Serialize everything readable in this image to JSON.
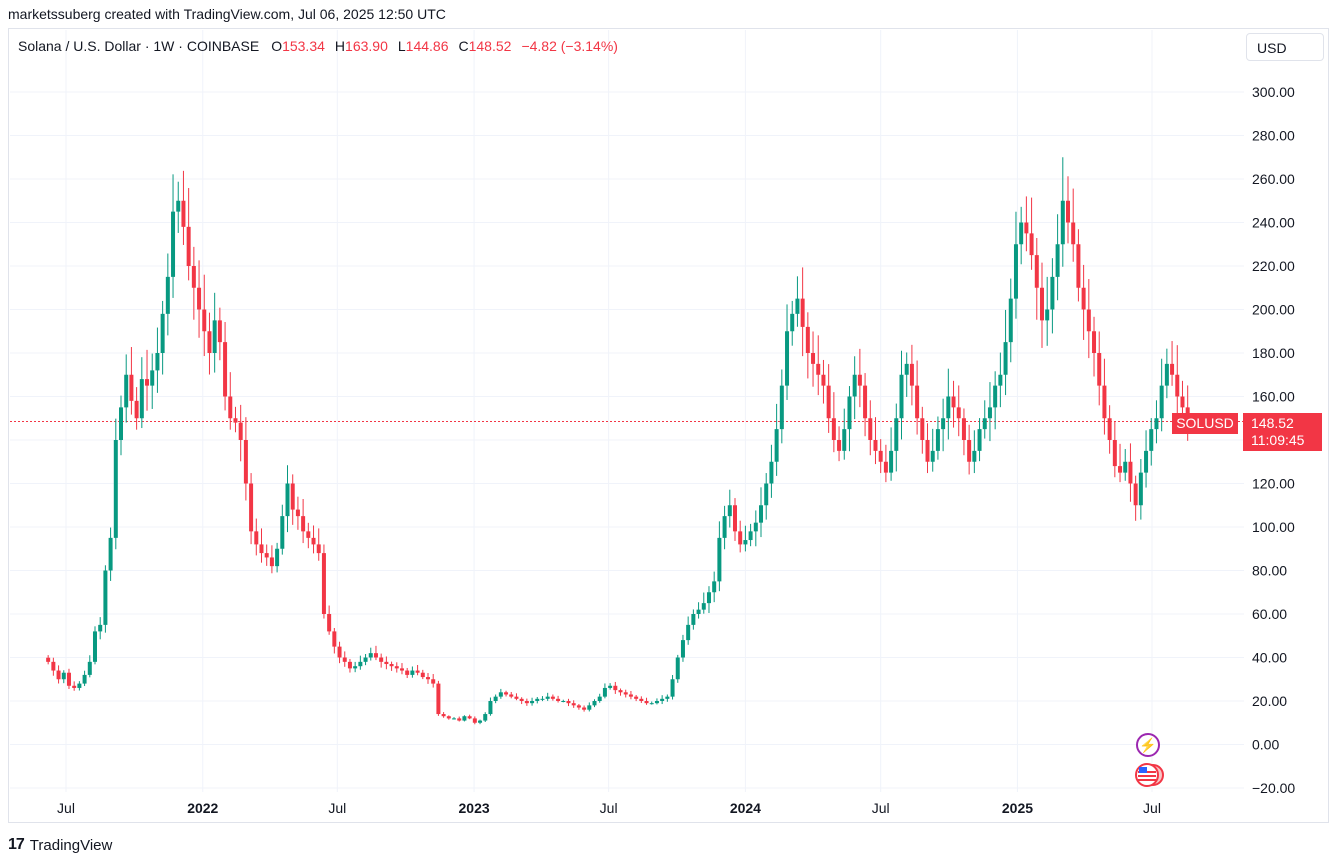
{
  "attribution": "marketssuberg created with TradingView.com, Jul 06, 2025 12:50 UTC",
  "legend": {
    "symbol": "Solana / U.S. Dollar · 1W · COINBASE",
    "o_key": "O",
    "o_val": "153.34",
    "h_key": "H",
    "h_val": "163.90",
    "l_key": "L",
    "l_val": "144.86",
    "c_key": "C",
    "c_val": "148.52",
    "change": "−4.82 (−3.14%)"
  },
  "currency_button": "USD",
  "price_tag": {
    "symbol": "SOLUSD",
    "price": "148.52",
    "countdown": "11:09:45"
  },
  "footer": {
    "mark": "17",
    "brand": "TradingView"
  },
  "colors": {
    "up": "#089981",
    "down": "#f23645",
    "grid": "#f0f3fa",
    "axis_text": "#131722"
  },
  "icons": {
    "event_bolt": "lightning-icon",
    "event_flag": "us-flag-icon"
  },
  "chart_data": {
    "type": "candlestick",
    "title": "Solana / U.S. Dollar",
    "interval": "1W",
    "exchange": "COINBASE",
    "ylim": [
      -20,
      300
    ],
    "y_ticks": [
      "300.00",
      "280.00",
      "260.00",
      "240.00",
      "220.00",
      "200.00",
      "180.00",
      "160.00",
      "140.00",
      "120.00",
      "100.00",
      "80.00",
      "60.00",
      "40.00",
      "20.00",
      "0.00",
      "−20.00"
    ],
    "x_ticks": [
      {
        "label": "Jul",
        "date": "2021-07-01",
        "bold": false
      },
      {
        "label": "2022",
        "date": "2022-01-01",
        "bold": true
      },
      {
        "label": "Jul",
        "date": "2022-07-01",
        "bold": false
      },
      {
        "label": "2023",
        "date": "2023-01-01",
        "bold": true
      },
      {
        "label": "Jul",
        "date": "2023-07-01",
        "bold": false
      },
      {
        "label": "2024",
        "date": "2024-01-01",
        "bold": true
      },
      {
        "label": "Jul",
        "date": "2024-07-01",
        "bold": false
      },
      {
        "label": "2025",
        "date": "2025-01-01",
        "bold": true
      },
      {
        "label": "Jul",
        "date": "2025-07-01",
        "bold": false
      }
    ],
    "grid": true,
    "last_price": 148.52,
    "closes": [
      38,
      34,
      30,
      33,
      27,
      26,
      28,
      32,
      38,
      52,
      55,
      80,
      95,
      140,
      155,
      170,
      158,
      150,
      168,
      165,
      172,
      180,
      198,
      215,
      245,
      250,
      238,
      220,
      210,
      200,
      190,
      180,
      195,
      185,
      160,
      150,
      148,
      140,
      120,
      98,
      92,
      88,
      86,
      82,
      90,
      105,
      120,
      108,
      105,
      98,
      95,
      92,
      88,
      60,
      52,
      45,
      40,
      38,
      35,
      36,
      38,
      40,
      42,
      40,
      38,
      37,
      36,
      35,
      34,
      32,
      34,
      33,
      31,
      30,
      28,
      14,
      13,
      12,
      12,
      11,
      13,
      12,
      10,
      11,
      14,
      20,
      22,
      24,
      23,
      22,
      21,
      20,
      19,
      20,
      21,
      21,
      22,
      21,
      20,
      20,
      19,
      18,
      17,
      16,
      18,
      20,
      22,
      26,
      27,
      25,
      24,
      23,
      22,
      21,
      20,
      19,
      19,
      20,
      21,
      22,
      30,
      40,
      48,
      55,
      60,
      62,
      65,
      70,
      75,
      95,
      105,
      110,
      98,
      92,
      94,
      98,
      102,
      110,
      120,
      130,
      145,
      165,
      190,
      198,
      205,
      192,
      180,
      175,
      170,
      165,
      150,
      140,
      135,
      145,
      160,
      170,
      165,
      150,
      140,
      135,
      130,
      125,
      135,
      150,
      170,
      175,
      165,
      150,
      140,
      130,
      135,
      145,
      150,
      160,
      155,
      150,
      140,
      130,
      135,
      145,
      150,
      155,
      165,
      170,
      185,
      205,
      230,
      240,
      235,
      225,
      210,
      195,
      200,
      215,
      230,
      250,
      240,
      230,
      210,
      200,
      190,
      180,
      165,
      150,
      140,
      128,
      125,
      130,
      120,
      110,
      125,
      135,
      145,
      150,
      165,
      175,
      170,
      160,
      155,
      148.52
    ]
  }
}
